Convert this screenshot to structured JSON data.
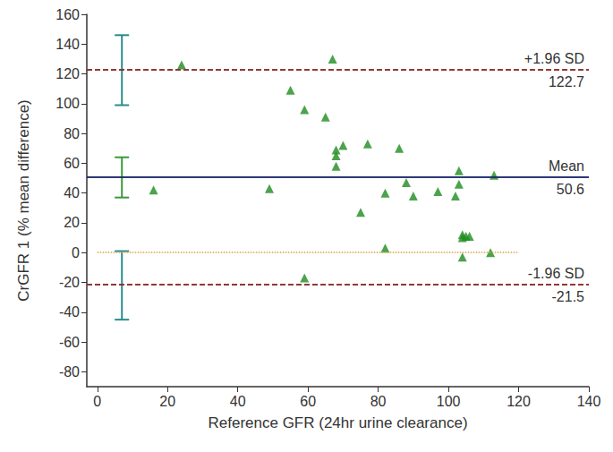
{
  "chart_data": {
    "type": "scatter",
    "xlabel": "Reference GFR (24hr urine clearance)",
    "ylabel": "CrGFR 1 (% mean difference)",
    "x": [
      16,
      24,
      49,
      55,
      59,
      59,
      65,
      67,
      68,
      68,
      68,
      70,
      75,
      77,
      82,
      82,
      86,
      88,
      90,
      97,
      102,
      103,
      103,
      104,
      104,
      104,
      105,
      106,
      112,
      113
    ],
    "values": [
      42,
      126,
      43,
      109,
      96,
      -17,
      91,
      130,
      58,
      65,
      69,
      72,
      27,
      73,
      40,
      3,
      70,
      47,
      38,
      41,
      38,
      55,
      46,
      10,
      -3,
      12,
      11,
      11,
      0,
      52
    ],
    "color": "#1e8c1e",
    "marker": "triangle",
    "xlim": [
      -3,
      140
    ],
    "xticks": [
      0,
      20,
      40,
      60,
      80,
      100,
      120,
      140
    ],
    "ylim": [
      -90,
      160
    ],
    "yticks": [
      -80,
      -60,
      -40,
      -20,
      0,
      20,
      40,
      60,
      80,
      100,
      120,
      140,
      160
    ],
    "grid": false,
    "reference_lines": [
      {
        "name": "+1.96 SD",
        "value": 122.7,
        "color": "#8b2d2d",
        "line_style": "dashed"
      },
      {
        "name": "Mean",
        "value": 50.6,
        "color": "#1f2a6e",
        "line_style": "solid"
      },
      {
        "name": "-1.96 SD",
        "value": -21.5,
        "color": "#8b2d2d",
        "line_style": "dashed"
      }
    ],
    "zero_line": {
      "value": 0,
      "x_range": [
        0,
        120
      ],
      "color": "#d9a441",
      "line_style": "dotted"
    },
    "intervals": [
      {
        "x": 7,
        "low": 99,
        "high": 146,
        "color": "#2a8c8c"
      },
      {
        "x": 7,
        "low": 37,
        "high": 64,
        "color": "#3a9a3a"
      },
      {
        "x": 7,
        "low": -45,
        "high": 1,
        "color": "#2a8c8c"
      }
    ]
  }
}
